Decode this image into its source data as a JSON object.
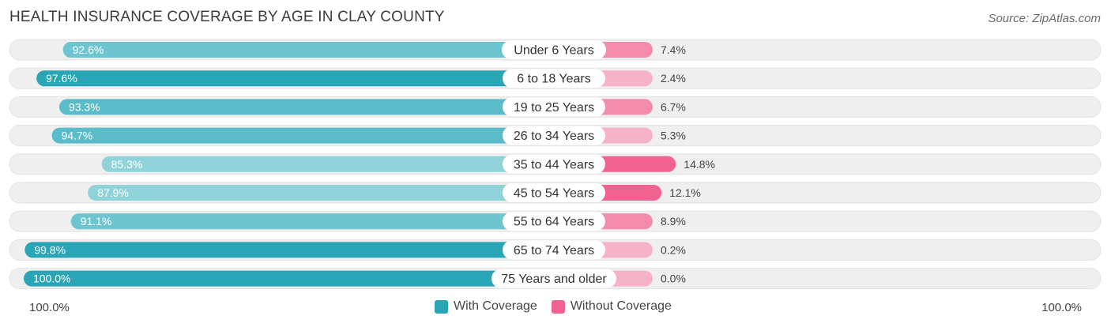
{
  "title": "HEALTH INSURANCE COVERAGE BY AGE IN CLAY COUNTY",
  "source": "Source: ZipAtlas.com",
  "footer": {
    "left_label": "100.0%",
    "right_label": "100.0%"
  },
  "colors": {
    "with_dark": "#2aa5b6",
    "with_light": "#8fd2d9",
    "without_dark": "#f0628f",
    "without_light": "#f6b3c8",
    "track": "#efefef"
  },
  "chart_data": {
    "type": "bar",
    "orientation": "horizontal-diverging",
    "title": "HEALTH INSURANCE COVERAGE BY AGE IN CLAY COUNTY",
    "xlim": [
      0,
      100
    ],
    "legend_position": "bottom-center",
    "categories": [
      "Under 6 Years",
      "6 to 18 Years",
      "19 to 25 Years",
      "26 to 34 Years",
      "35 to 44 Years",
      "45 to 54 Years",
      "55 to 64 Years",
      "65 to 74 Years",
      "75 Years and older"
    ],
    "series": [
      {
        "name": "With Coverage",
        "values": [
          92.6,
          97.6,
          93.3,
          94.7,
          85.3,
          87.9,
          91.1,
          99.8,
          100.0
        ],
        "labels": [
          "92.6%",
          "97.6%",
          "93.3%",
          "94.7%",
          "85.3%",
          "87.9%",
          "91.1%",
          "99.8%",
          "100.0%"
        ]
      },
      {
        "name": "Without Coverage",
        "values": [
          7.4,
          2.4,
          6.7,
          5.3,
          14.8,
          12.1,
          8.9,
          0.2,
          0.0
        ],
        "labels": [
          "7.4%",
          "2.4%",
          "6.7%",
          "5.3%",
          "14.8%",
          "12.1%",
          "8.9%",
          "0.2%",
          "0.0%"
        ]
      }
    ]
  }
}
